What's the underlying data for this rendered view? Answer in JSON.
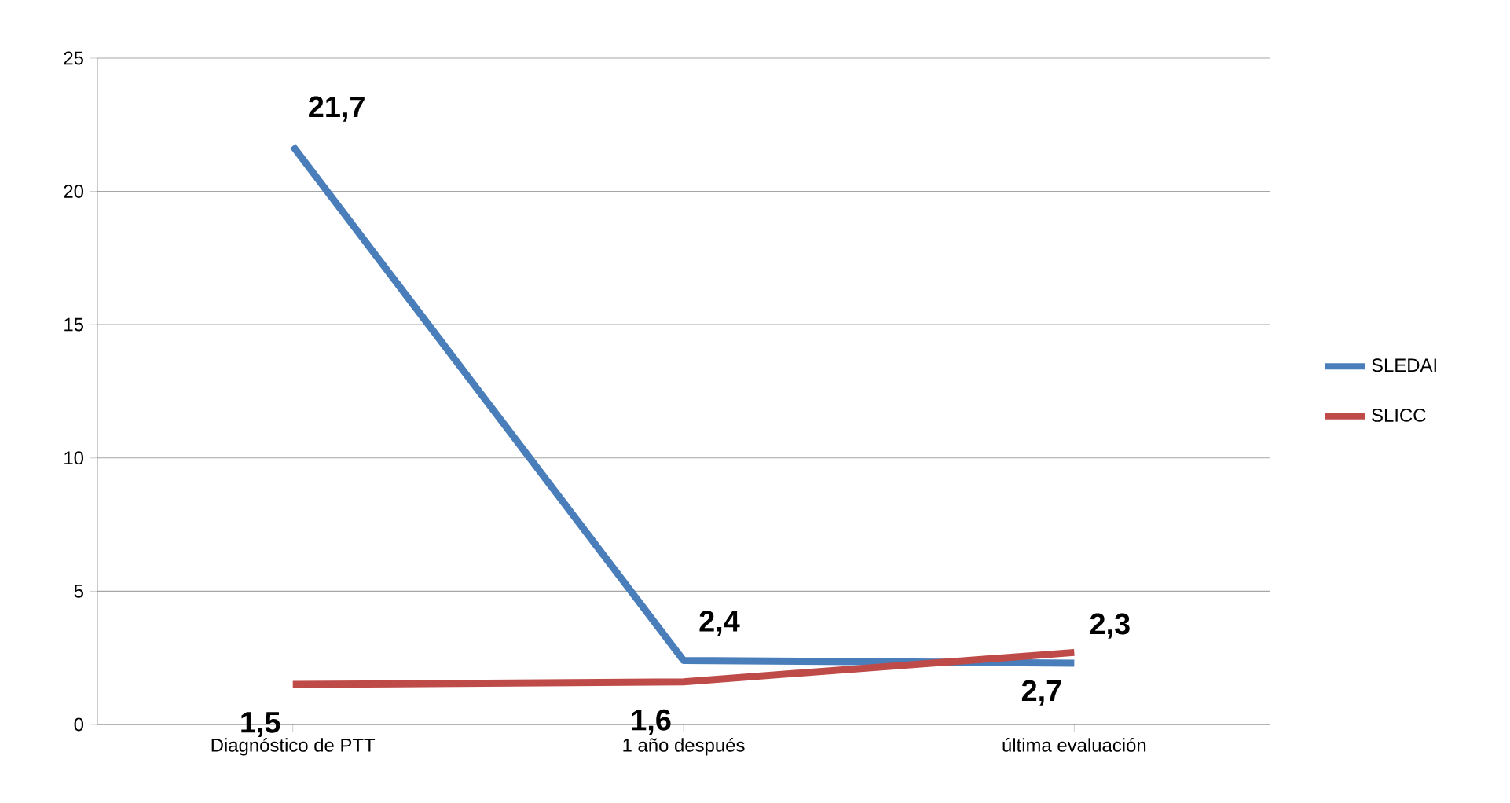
{
  "chart_data": {
    "type": "line",
    "categories": [
      "Diagnóstico de PTT",
      "1 año después",
      "última evaluación"
    ],
    "series": [
      {
        "name": "SLEDAI",
        "color": "#4a7ebb",
        "values": [
          21.7,
          2.4,
          2.3
        ],
        "value_labels": [
          "21,7",
          "2,4",
          "2,3"
        ]
      },
      {
        "name": "SLICC",
        "color": "#be4b48",
        "values": [
          1.5,
          1.6,
          2.7
        ],
        "value_labels": [
          "1,5",
          "1,6",
          "2,7"
        ]
      }
    ],
    "ylim": [
      0,
      25
    ],
    "yticks": [
      0,
      5,
      10,
      15,
      20,
      25
    ],
    "grid": "y",
    "legend": "right",
    "marker": "none",
    "line_style": "solid"
  }
}
